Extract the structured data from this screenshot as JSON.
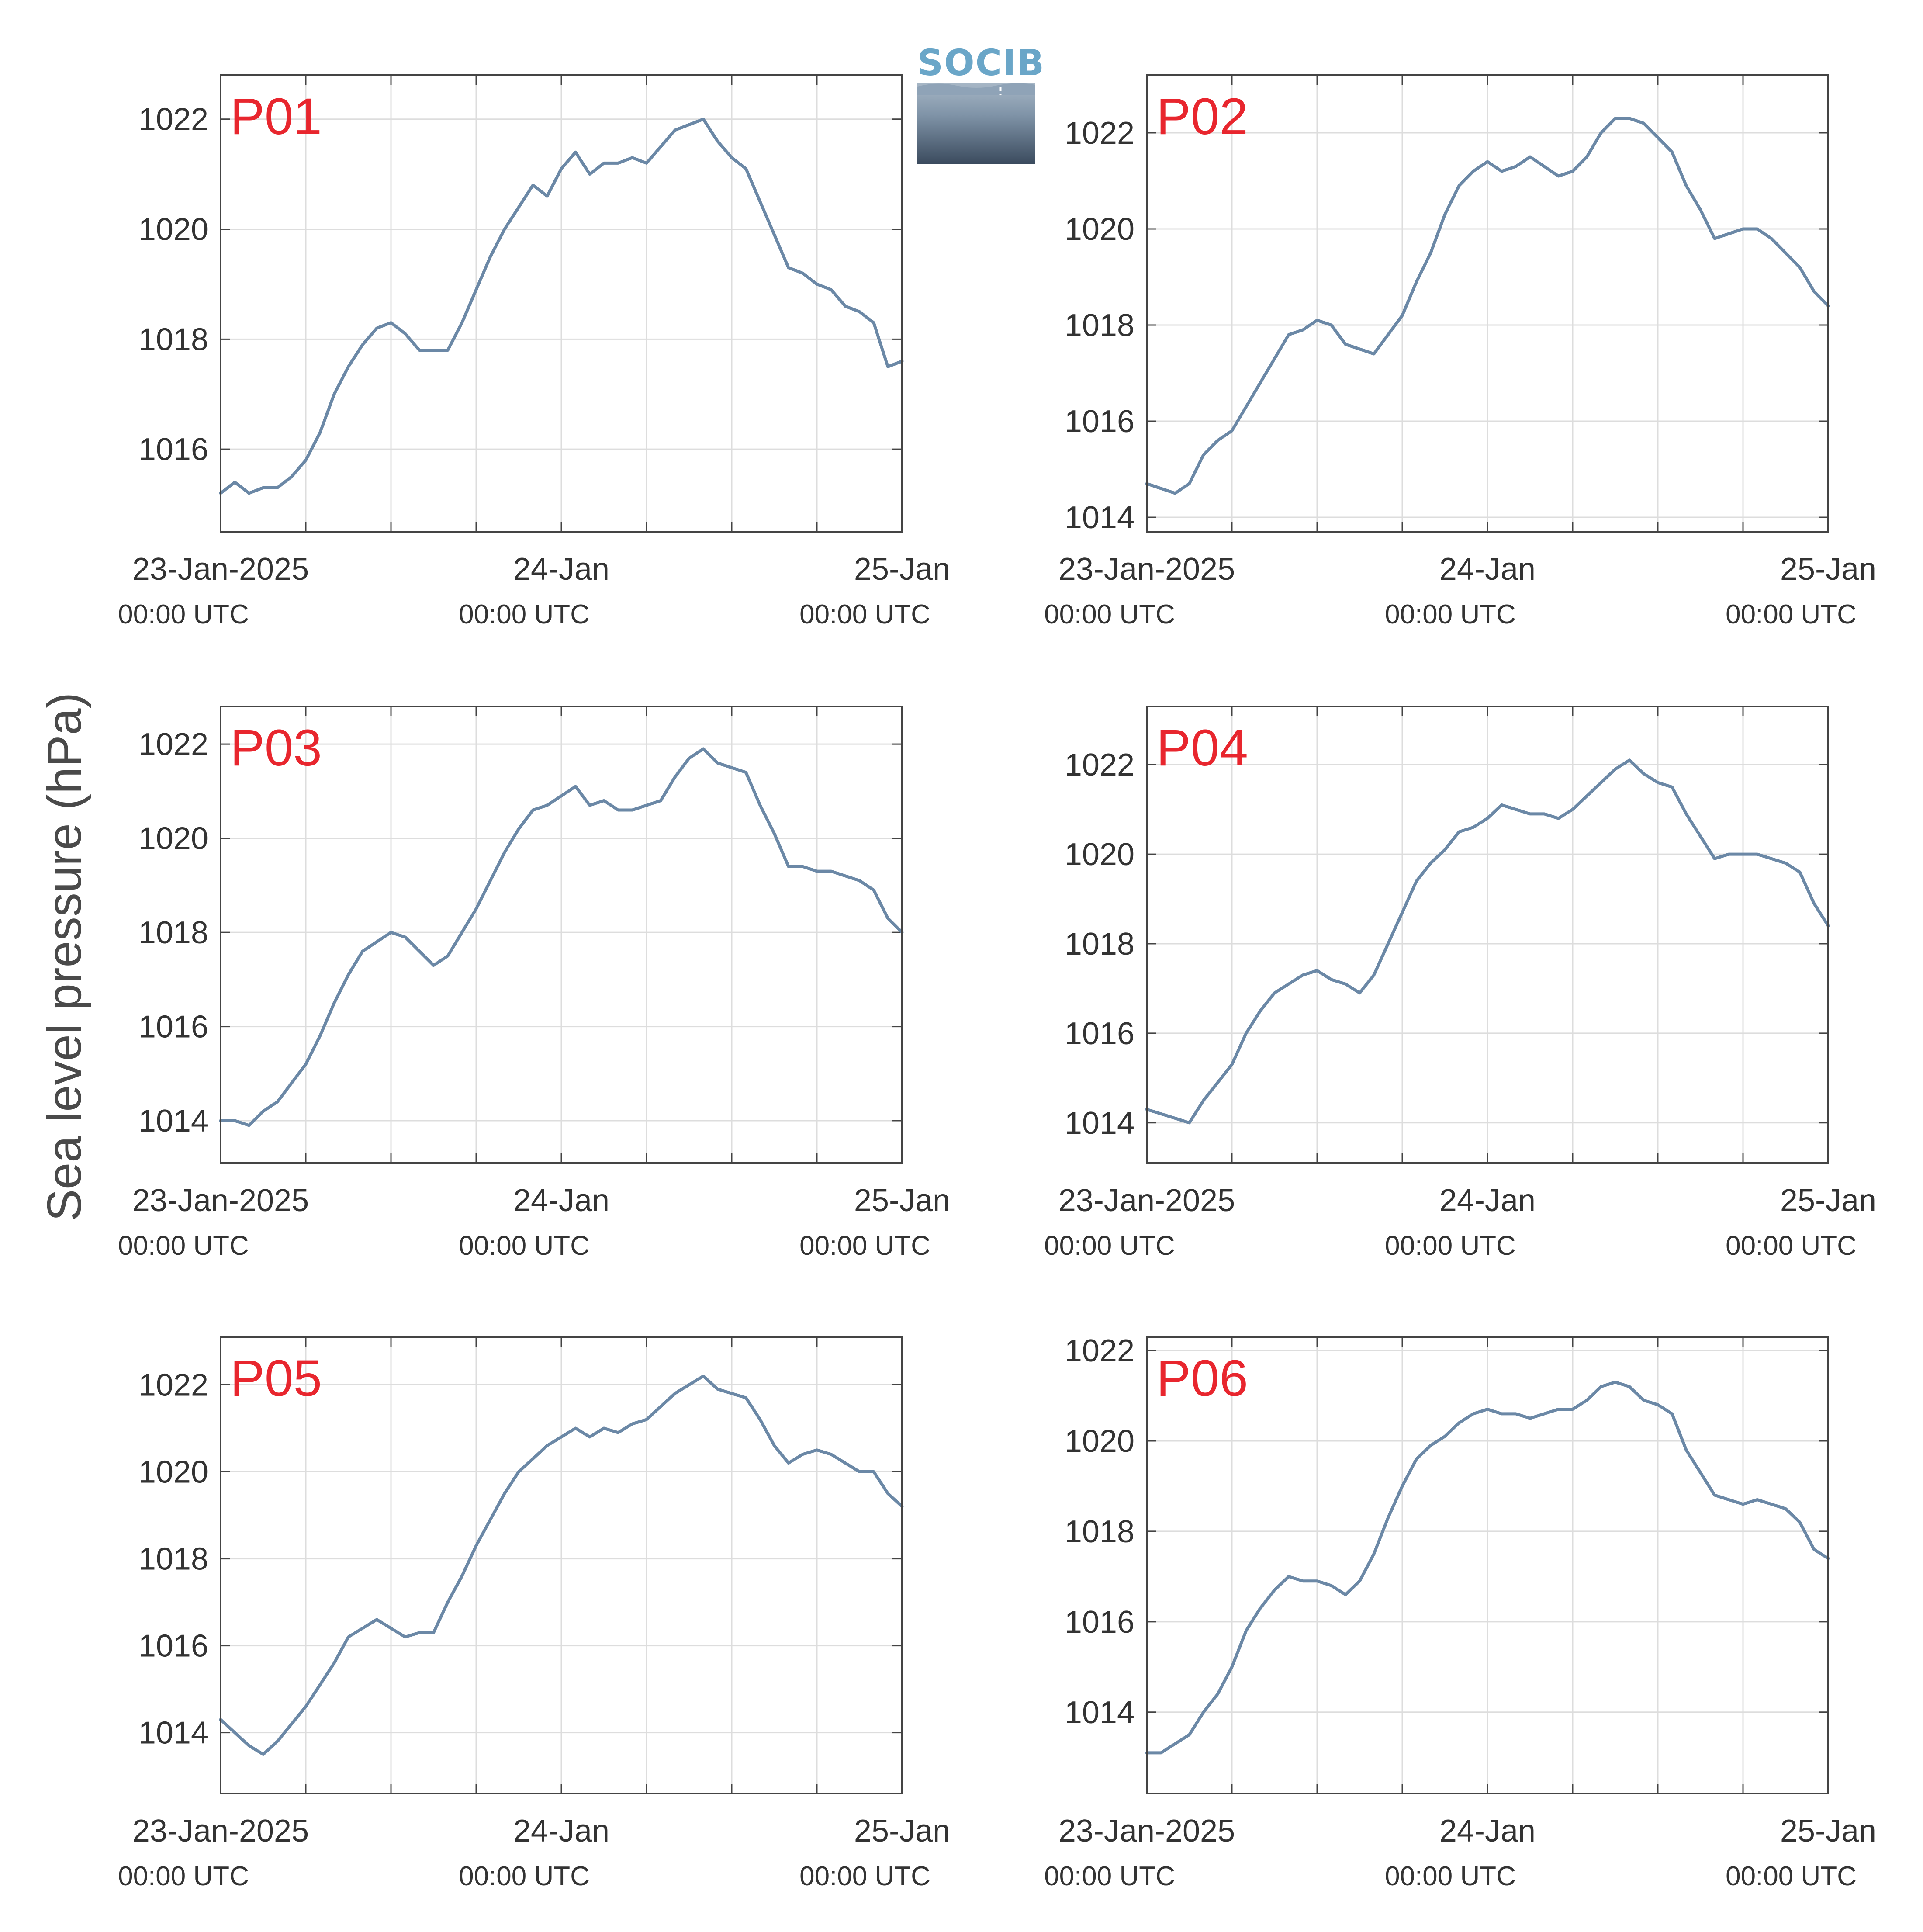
{
  "logo": {
    "text": "SOCIB"
  },
  "ylabel": "Sea level pressure (hPa)",
  "x_ticks": [
    {
      "line1": "23-Jan-2025",
      "line2": "00:00 UTC",
      "hour": 0
    },
    {
      "line1": "24-Jan",
      "line2": "00:00 UTC",
      "hour": 24
    },
    {
      "line1": "25-Jan",
      "line2": "00:00 UTC",
      "hour": 48
    }
  ],
  "colors": {
    "line": "#6b88a6",
    "label": "#e8262e",
    "axis": "#444444",
    "grid": "#dddddd"
  },
  "chart_data": [
    {
      "type": "line",
      "label": "P01",
      "ylim": [
        1014.5,
        1022.8
      ],
      "yticks": [
        1016,
        1018,
        1020,
        1022
      ],
      "x": [
        0,
        1,
        2,
        3,
        4,
        5,
        6,
        7,
        8,
        9,
        10,
        11,
        12,
        13,
        14,
        15,
        16,
        17,
        18,
        19,
        20,
        21,
        22,
        23,
        24,
        25,
        26,
        27,
        28,
        29,
        30,
        31,
        32,
        33,
        34,
        35,
        36,
        37,
        38,
        39,
        40,
        41,
        42,
        43,
        44,
        45,
        46,
        47,
        48
      ],
      "y": [
        1015.2,
        1015.4,
        1015.2,
        1015.3,
        1015.3,
        1015.5,
        1015.8,
        1016.3,
        1017.0,
        1017.5,
        1017.9,
        1018.2,
        1018.3,
        1018.1,
        1017.8,
        1017.8,
        1017.8,
        1018.3,
        1018.9,
        1019.5,
        1020.0,
        1020.4,
        1020.8,
        1020.6,
        1021.1,
        1021.4,
        1021.0,
        1021.2,
        1021.2,
        1021.3,
        1021.2,
        1021.5,
        1021.8,
        1021.9,
        1022.0,
        1021.6,
        1021.3,
        1021.1,
        1020.5,
        1019.9,
        1019.3,
        1019.2,
        1019.0,
        1018.9,
        1018.6,
        1018.5,
        1018.3,
        1017.5,
        1017.6
      ]
    },
    {
      "type": "line",
      "label": "P02",
      "ylim": [
        1013.7,
        1023.2
      ],
      "yticks": [
        1014,
        1016,
        1018,
        1020,
        1022
      ],
      "x": [
        0,
        1,
        2,
        3,
        4,
        5,
        6,
        7,
        8,
        9,
        10,
        11,
        12,
        13,
        14,
        15,
        16,
        17,
        18,
        19,
        20,
        21,
        22,
        23,
        24,
        25,
        26,
        27,
        28,
        29,
        30,
        31,
        32,
        33,
        34,
        35,
        36,
        37,
        38,
        39,
        40,
        41,
        42,
        43,
        44,
        45,
        46,
        47,
        48
      ],
      "y": [
        1014.7,
        1014.6,
        1014.5,
        1014.7,
        1015.3,
        1015.6,
        1015.8,
        1016.3,
        1016.8,
        1017.3,
        1017.8,
        1017.9,
        1018.1,
        1018.0,
        1017.6,
        1017.5,
        1017.4,
        1017.8,
        1018.2,
        1018.9,
        1019.5,
        1020.3,
        1020.9,
        1021.2,
        1021.4,
        1021.2,
        1021.3,
        1021.5,
        1021.3,
        1021.1,
        1021.2,
        1021.5,
        1022.0,
        1022.3,
        1022.3,
        1022.2,
        1021.9,
        1021.6,
        1020.9,
        1020.4,
        1019.8,
        1019.9,
        1020.0,
        1020.0,
        1019.8,
        1019.5,
        1019.2,
        1018.7,
        1018.4
      ]
    },
    {
      "type": "line",
      "label": "P03",
      "ylim": [
        1013.1,
        1022.8
      ],
      "yticks": [
        1014,
        1016,
        1018,
        1020,
        1022
      ],
      "x": [
        0,
        1,
        2,
        3,
        4,
        5,
        6,
        7,
        8,
        9,
        10,
        11,
        12,
        13,
        14,
        15,
        16,
        17,
        18,
        19,
        20,
        21,
        22,
        23,
        24,
        25,
        26,
        27,
        28,
        29,
        30,
        31,
        32,
        33,
        34,
        35,
        36,
        37,
        38,
        39,
        40,
        41,
        42,
        43,
        44,
        45,
        46,
        47,
        48
      ],
      "y": [
        1014.0,
        1014.0,
        1013.9,
        1014.2,
        1014.4,
        1014.8,
        1015.2,
        1015.8,
        1016.5,
        1017.1,
        1017.6,
        1017.8,
        1018.0,
        1017.9,
        1017.6,
        1017.3,
        1017.5,
        1018.0,
        1018.5,
        1019.1,
        1019.7,
        1020.2,
        1020.6,
        1020.7,
        1020.9,
        1021.1,
        1020.7,
        1020.8,
        1020.6,
        1020.6,
        1020.7,
        1020.8,
        1021.3,
        1021.7,
        1021.9,
        1021.6,
        1021.5,
        1021.4,
        1020.7,
        1020.1,
        1019.4,
        1019.4,
        1019.3,
        1019.3,
        1019.2,
        1019.1,
        1018.9,
        1018.3,
        1018.0
      ]
    },
    {
      "type": "line",
      "label": "P04",
      "ylim": [
        1013.1,
        1023.3
      ],
      "yticks": [
        1014,
        1016,
        1018,
        1020,
        1022
      ],
      "x": [
        0,
        1,
        2,
        3,
        4,
        5,
        6,
        7,
        8,
        9,
        10,
        11,
        12,
        13,
        14,
        15,
        16,
        17,
        18,
        19,
        20,
        21,
        22,
        23,
        24,
        25,
        26,
        27,
        28,
        29,
        30,
        31,
        32,
        33,
        34,
        35,
        36,
        37,
        38,
        39,
        40,
        41,
        42,
        43,
        44,
        45,
        46,
        47,
        48
      ],
      "y": [
        1014.3,
        1014.2,
        1014.1,
        1014.0,
        1014.5,
        1014.9,
        1015.3,
        1016.0,
        1016.5,
        1016.9,
        1017.1,
        1017.3,
        1017.4,
        1017.2,
        1017.1,
        1016.9,
        1017.3,
        1018.0,
        1018.7,
        1019.4,
        1019.8,
        1020.1,
        1020.5,
        1020.6,
        1020.8,
        1021.1,
        1021.0,
        1020.9,
        1020.9,
        1020.8,
        1021.0,
        1021.3,
        1021.6,
        1021.9,
        1022.1,
        1021.8,
        1021.6,
        1021.5,
        1020.9,
        1020.4,
        1019.9,
        1020.0,
        1020.0,
        1020.0,
        1019.9,
        1019.8,
        1019.6,
        1018.9,
        1018.4
      ]
    },
    {
      "type": "line",
      "label": "P05",
      "ylim": [
        1012.6,
        1023.1
      ],
      "yticks": [
        1014,
        1016,
        1018,
        1020,
        1022
      ],
      "x": [
        0,
        1,
        2,
        3,
        4,
        5,
        6,
        7,
        8,
        9,
        10,
        11,
        12,
        13,
        14,
        15,
        16,
        17,
        18,
        19,
        20,
        21,
        22,
        23,
        24,
        25,
        26,
        27,
        28,
        29,
        30,
        31,
        32,
        33,
        34,
        35,
        36,
        37,
        38,
        39,
        40,
        41,
        42,
        43,
        44,
        45,
        46,
        47,
        48
      ],
      "y": [
        1014.3,
        1014.0,
        1013.7,
        1013.5,
        1013.8,
        1014.2,
        1014.6,
        1015.1,
        1015.6,
        1016.2,
        1016.4,
        1016.6,
        1016.4,
        1016.2,
        1016.3,
        1016.3,
        1017.0,
        1017.6,
        1018.3,
        1018.9,
        1019.5,
        1020.0,
        1020.3,
        1020.6,
        1020.8,
        1021.0,
        1020.8,
        1021.0,
        1020.9,
        1021.1,
        1021.2,
        1021.5,
        1021.8,
        1022.0,
        1022.2,
        1021.9,
        1021.8,
        1021.7,
        1021.2,
        1020.6,
        1020.2,
        1020.4,
        1020.5,
        1020.4,
        1020.2,
        1020.0,
        1020.0,
        1019.5,
        1019.2
      ]
    },
    {
      "type": "line",
      "label": "P06",
      "ylim": [
        1012.2,
        1022.3
      ],
      "yticks": [
        1014,
        1016,
        1018,
        1020,
        1022
      ],
      "x": [
        0,
        1,
        2,
        3,
        4,
        5,
        6,
        7,
        8,
        9,
        10,
        11,
        12,
        13,
        14,
        15,
        16,
        17,
        18,
        19,
        20,
        21,
        22,
        23,
        24,
        25,
        26,
        27,
        28,
        29,
        30,
        31,
        32,
        33,
        34,
        35,
        36,
        37,
        38,
        39,
        40,
        41,
        42,
        43,
        44,
        45,
        46,
        47,
        48
      ],
      "y": [
        1013.1,
        1013.1,
        1013.3,
        1013.5,
        1014.0,
        1014.4,
        1015.0,
        1015.8,
        1016.3,
        1016.7,
        1017.0,
        1016.9,
        1016.9,
        1016.8,
        1016.6,
        1016.9,
        1017.5,
        1018.3,
        1019.0,
        1019.6,
        1019.9,
        1020.1,
        1020.4,
        1020.6,
        1020.7,
        1020.6,
        1020.6,
        1020.5,
        1020.6,
        1020.7,
        1020.7,
        1020.9,
        1021.2,
        1021.3,
        1021.2,
        1020.9,
        1020.8,
        1020.6,
        1019.8,
        1019.3,
        1018.8,
        1018.7,
        1018.6,
        1018.7,
        1018.6,
        1018.5,
        1018.2,
        1017.6,
        1017.4
      ]
    }
  ]
}
